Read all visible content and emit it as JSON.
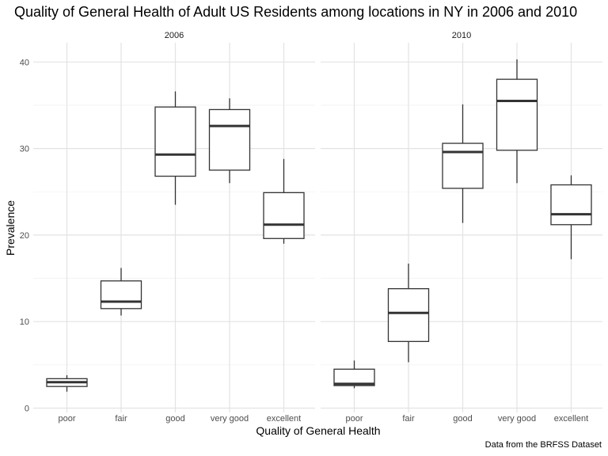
{
  "title": "Quality of General Health of Adult US Residents among locations in NY in 2006 and 2010",
  "caption": "Data from the BRFSS Dataset",
  "chart_data": {
    "type": "boxplot",
    "xlabel": "Quality of General Health",
    "ylabel": "Prevalence",
    "categories": [
      "poor",
      "fair",
      "good",
      "very good",
      "excellent"
    ],
    "ylim": [
      0,
      41
    ],
    "yticks": [
      0,
      10,
      20,
      30,
      40
    ],
    "grid": true,
    "panels": [
      {
        "name": "2006",
        "boxes": [
          {
            "category": "poor",
            "min": 1.9,
            "q1": 2.5,
            "median": 3.0,
            "q3": 3.4,
            "max": 3.8
          },
          {
            "category": "fair",
            "min": 10.7,
            "q1": 11.5,
            "median": 12.3,
            "q3": 14.7,
            "max": 16.2
          },
          {
            "category": "good",
            "min": 23.5,
            "q1": 26.8,
            "median": 29.3,
            "q3": 34.8,
            "max": 36.6
          },
          {
            "category": "very good",
            "min": 26.0,
            "q1": 27.5,
            "median": 32.6,
            "q3": 34.5,
            "max": 35.8
          },
          {
            "category": "excellent",
            "min": 19.0,
            "q1": 19.6,
            "median": 21.2,
            "q3": 24.9,
            "max": 28.8
          }
        ]
      },
      {
        "name": "2010",
        "boxes": [
          {
            "category": "poor",
            "min": 2.3,
            "q1": 2.6,
            "median": 2.8,
            "q3": 4.5,
            "max": 5.5
          },
          {
            "category": "fair",
            "min": 5.3,
            "q1": 7.7,
            "median": 11.0,
            "q3": 13.8,
            "max": 16.7
          },
          {
            "category": "good",
            "min": 21.4,
            "q1": 25.4,
            "median": 29.6,
            "q3": 30.6,
            "max": 35.1
          },
          {
            "category": "very good",
            "min": 26.0,
            "q1": 29.8,
            "median": 35.5,
            "q3": 38.0,
            "max": 40.3
          },
          {
            "category": "excellent",
            "min": 17.2,
            "q1": 21.2,
            "median": 22.4,
            "q3": 25.8,
            "max": 26.9
          }
        ]
      }
    ]
  }
}
